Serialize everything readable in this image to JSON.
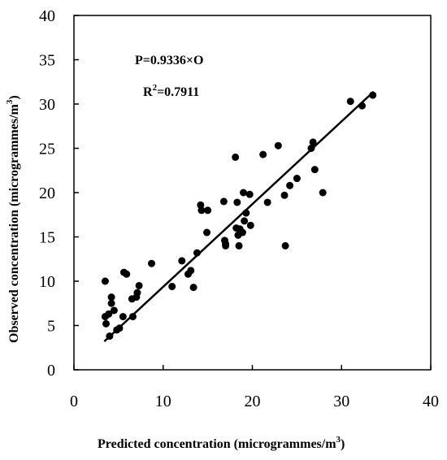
{
  "chart_data": {
    "type": "scatter",
    "title": "",
    "xlabel": "Predicted concentration (microgrammes/m",
    "xlabel_sup": "3",
    "xlabel_end": ")",
    "ylabel": "Observed concentration (microgrammes/m",
    "ylabel_sup": "3",
    "ylabel_end": ")",
    "xlim": [
      0,
      40
    ],
    "ylim": [
      0,
      40
    ],
    "xticks": [
      "0",
      "10",
      "20",
      "30",
      "40"
    ],
    "yticks": [
      "0",
      "5",
      "10",
      "15",
      "20",
      "25",
      "30",
      "35",
      "40"
    ],
    "grid": false,
    "annotations": {
      "equation": "P=0.9336×O",
      "r2_prefix": "R",
      "r2_sup": "2",
      "r2_value": "=0.7911"
    },
    "trendline": {
      "x": [
        3.4,
        33.6
      ],
      "y": [
        3.2,
        31.4
      ]
    },
    "points": [
      {
        "x": 3.5,
        "y": 10.0
      },
      {
        "x": 3.5,
        "y": 6.0
      },
      {
        "x": 3.6,
        "y": 5.2
      },
      {
        "x": 3.9,
        "y": 6.3
      },
      {
        "x": 4.0,
        "y": 3.8
      },
      {
        "x": 4.2,
        "y": 8.2
      },
      {
        "x": 4.2,
        "y": 7.5
      },
      {
        "x": 4.5,
        "y": 6.7
      },
      {
        "x": 4.8,
        "y": 4.5
      },
      {
        "x": 5.1,
        "y": 4.7
      },
      {
        "x": 5.5,
        "y": 6.0
      },
      {
        "x": 5.6,
        "y": 11.0
      },
      {
        "x": 5.9,
        "y": 10.8
      },
      {
        "x": 6.5,
        "y": 8.0
      },
      {
        "x": 6.6,
        "y": 6.0
      },
      {
        "x": 7.0,
        "y": 8.2
      },
      {
        "x": 7.1,
        "y": 8.7
      },
      {
        "x": 7.3,
        "y": 9.5
      },
      {
        "x": 8.7,
        "y": 12.0
      },
      {
        "x": 11.0,
        "y": 9.4
      },
      {
        "x": 12.1,
        "y": 12.3
      },
      {
        "x": 12.8,
        "y": 10.8
      },
      {
        "x": 13.1,
        "y": 11.2
      },
      {
        "x": 13.4,
        "y": 9.3
      },
      {
        "x": 13.8,
        "y": 13.2
      },
      {
        "x": 14.2,
        "y": 18.6
      },
      {
        "x": 14.3,
        "y": 18.0
      },
      {
        "x": 14.9,
        "y": 15.5
      },
      {
        "x": 15.0,
        "y": 18.0
      },
      {
        "x": 16.8,
        "y": 19.0
      },
      {
        "x": 16.9,
        "y": 14.6
      },
      {
        "x": 17.0,
        "y": 14.2
      },
      {
        "x": 17.0,
        "y": 14.0
      },
      {
        "x": 18.1,
        "y": 24.0
      },
      {
        "x": 18.2,
        "y": 16.0
      },
      {
        "x": 18.3,
        "y": 18.9
      },
      {
        "x": 18.4,
        "y": 15.2
      },
      {
        "x": 18.5,
        "y": 14.0
      },
      {
        "x": 18.6,
        "y": 15.9
      },
      {
        "x": 18.9,
        "y": 15.5
      },
      {
        "x": 19.0,
        "y": 20.0
      },
      {
        "x": 19.1,
        "y": 16.8
      },
      {
        "x": 19.3,
        "y": 17.7
      },
      {
        "x": 19.7,
        "y": 19.8
      },
      {
        "x": 19.8,
        "y": 16.3
      },
      {
        "x": 21.2,
        "y": 24.3
      },
      {
        "x": 21.7,
        "y": 18.9
      },
      {
        "x": 22.9,
        "y": 25.3
      },
      {
        "x": 23.6,
        "y": 19.7
      },
      {
        "x": 23.7,
        "y": 14.0
      },
      {
        "x": 24.2,
        "y": 20.8
      },
      {
        "x": 25.0,
        "y": 21.6
      },
      {
        "x": 26.6,
        "y": 25.0
      },
      {
        "x": 26.8,
        "y": 25.7
      },
      {
        "x": 27.0,
        "y": 22.6
      },
      {
        "x": 27.9,
        "y": 20.0
      },
      {
        "x": 31.0,
        "y": 30.3
      },
      {
        "x": 32.3,
        "y": 29.8
      },
      {
        "x": 33.5,
        "y": 31.0
      }
    ]
  }
}
